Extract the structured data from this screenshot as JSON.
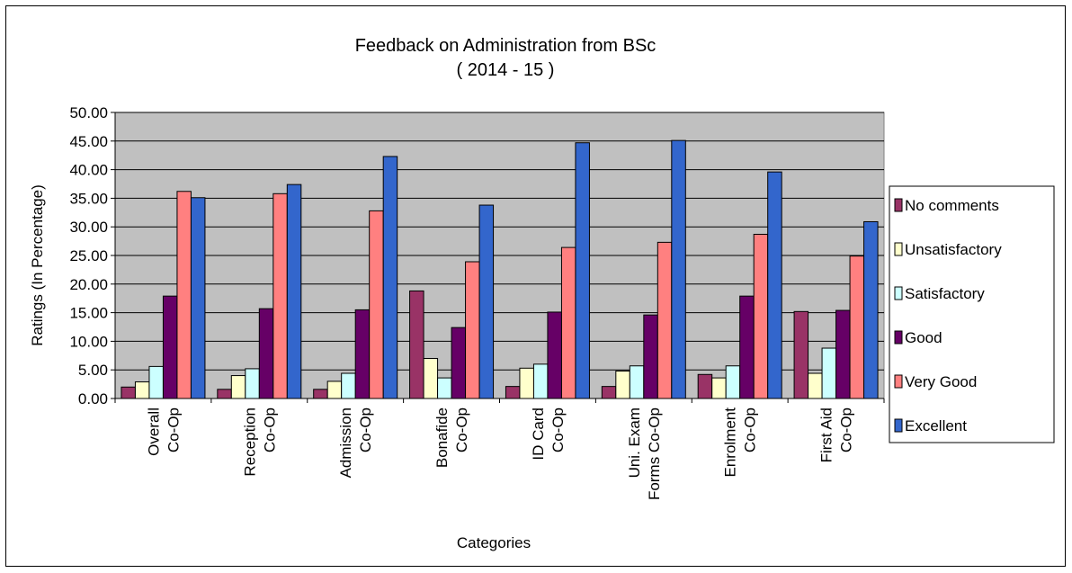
{
  "chart_data": {
    "type": "bar",
    "title": "Feedback on Administration from BSc",
    "subtitle": "( 2014 - 15 )",
    "xlabel": "Categories",
    "ylabel": "Ratings (In Percentage)",
    "ylim": [
      0,
      50
    ],
    "ytick_step": 5,
    "ytick_labels": [
      "0.00",
      "5.00",
      "10.00",
      "15.00",
      "20.00",
      "25.00",
      "30.00",
      "35.00",
      "40.00",
      "45.00",
      "50.00"
    ],
    "grid": true,
    "legend_position": "right",
    "categories": [
      [
        "Overall",
        "Co-Op"
      ],
      [
        "Reception",
        "Co-Op"
      ],
      [
        "Admission",
        "Co-Op"
      ],
      [
        "Bonafide",
        "Co-Op"
      ],
      [
        "ID Card",
        "Co-Op"
      ],
      [
        "Uni. Exam",
        "Forms Co-Op"
      ],
      [
        "Enrolment",
        "Co-Op"
      ],
      [
        "First Aid",
        "Co-Op"
      ]
    ],
    "series": [
      {
        "name": "No comments",
        "color": "#993366",
        "values": [
          2.0,
          1.6,
          1.6,
          18.8,
          2.1,
          2.1,
          4.2,
          15.2
        ]
      },
      {
        "name": "Unsatisfactory",
        "color": "#FFFFCC",
        "values": [
          2.9,
          4.0,
          3.0,
          7.0,
          5.3,
          4.8,
          3.6,
          4.4
        ]
      },
      {
        "name": "Satisfactory",
        "color": "#CCFFFF",
        "values": [
          5.6,
          5.2,
          4.4,
          3.6,
          6.0,
          5.7,
          5.7,
          8.8
        ]
      },
      {
        "name": "Good",
        "color": "#660066",
        "values": [
          17.9,
          15.7,
          15.5,
          12.4,
          15.1,
          14.6,
          17.9,
          15.4
        ]
      },
      {
        "name": "Very Good",
        "color": "#FF8080",
        "values": [
          36.2,
          35.8,
          32.8,
          23.9,
          26.4,
          27.3,
          28.7,
          24.9
        ]
      },
      {
        "name": "Excellent",
        "color": "#3366CC",
        "values": [
          35.1,
          37.4,
          42.3,
          33.8,
          44.7,
          45.1,
          39.6,
          30.9
        ]
      }
    ],
    "plot_background": "#C0C0C0"
  }
}
